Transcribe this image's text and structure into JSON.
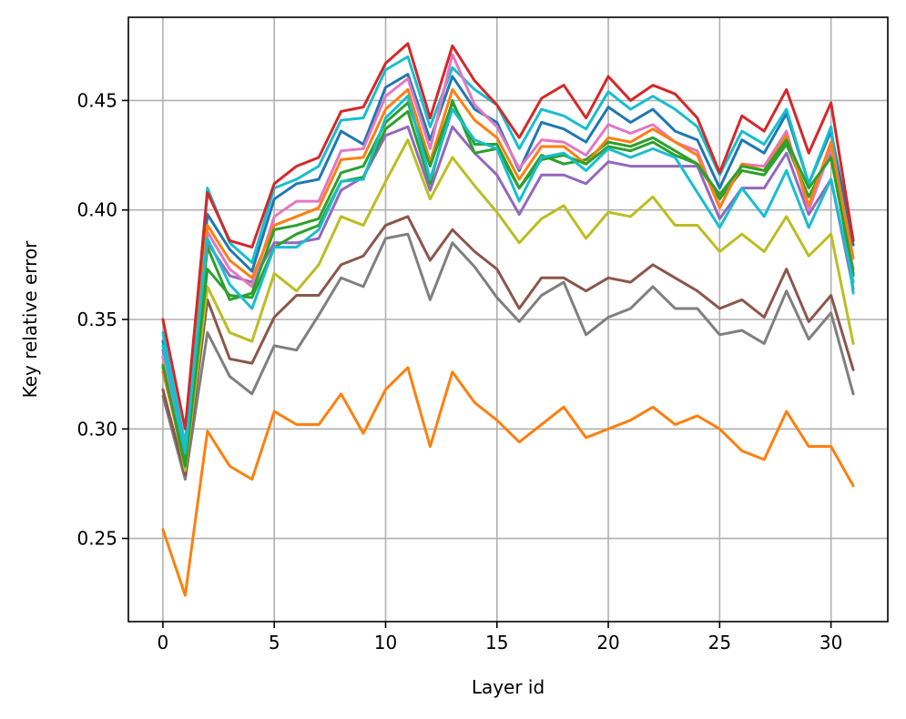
{
  "chart_data": {
    "type": "line",
    "title": "",
    "xlabel": "Layer id",
    "ylabel": "Key relative error",
    "xlim": [
      -1.55,
      32.55
    ],
    "ylim": [
      0.212,
      0.488
    ],
    "xticks": [
      0,
      5,
      10,
      15,
      20,
      25,
      30
    ],
    "xtick_labels": [
      "0",
      "5",
      "10",
      "15",
      "20",
      "25",
      "30"
    ],
    "yticks": [
      0.25,
      0.3,
      0.35,
      0.4,
      0.45
    ],
    "ytick_labels": [
      "0.25",
      "0.30",
      "0.35",
      "0.40",
      "0.45"
    ],
    "grid": true,
    "x": [
      0,
      1,
      2,
      3,
      4,
      5,
      6,
      7,
      8,
      9,
      10,
      11,
      12,
      13,
      14,
      15,
      16,
      17,
      18,
      19,
      20,
      21,
      22,
      23,
      24,
      25,
      26,
      27,
      28,
      29,
      30,
      31
    ],
    "series": [
      {
        "color": "#ff7f0e",
        "values": [
          0.254,
          0.224,
          0.299,
          0.283,
          0.277,
          0.308,
          0.302,
          0.302,
          0.316,
          0.298,
          0.318,
          0.328,
          0.292,
          0.326,
          0.312,
          0.304,
          0.294,
          0.302,
          0.31,
          0.296,
          0.3,
          0.304,
          0.31,
          0.302,
          0.306,
          0.3,
          0.29,
          0.286,
          0.308,
          0.292,
          0.292,
          0.274
        ]
      },
      {
        "color": "#7f7f7f",
        "values": [
          0.315,
          0.277,
          0.344,
          0.324,
          0.316,
          0.338,
          0.336,
          0.352,
          0.369,
          0.365,
          0.387,
          0.389,
          0.359,
          0.385,
          0.374,
          0.36,
          0.349,
          0.361,
          0.367,
          0.343,
          0.351,
          0.355,
          0.365,
          0.355,
          0.355,
          0.343,
          0.345,
          0.339,
          0.363,
          0.341,
          0.353,
          0.316
        ]
      },
      {
        "color": "#8c564b",
        "values": [
          0.318,
          0.279,
          0.359,
          0.332,
          0.33,
          0.351,
          0.361,
          0.361,
          0.375,
          0.379,
          0.393,
          0.397,
          0.377,
          0.391,
          0.381,
          0.373,
          0.355,
          0.369,
          0.369,
          0.363,
          0.369,
          0.367,
          0.375,
          0.369,
          0.363,
          0.355,
          0.359,
          0.351,
          0.373,
          0.349,
          0.361,
          0.327
        ]
      },
      {
        "color": "#bcbd22",
        "values": [
          0.33,
          0.281,
          0.365,
          0.344,
          0.34,
          0.371,
          0.363,
          0.375,
          0.397,
          0.393,
          0.413,
          0.432,
          0.405,
          0.424,
          0.411,
          0.399,
          0.385,
          0.396,
          0.402,
          0.387,
          0.399,
          0.397,
          0.406,
          0.393,
          0.393,
          0.381,
          0.389,
          0.381,
          0.397,
          0.379,
          0.389,
          0.339
        ]
      },
      {
        "color": "#9467bd",
        "values": [
          0.336,
          0.286,
          0.385,
          0.37,
          0.367,
          0.385,
          0.385,
          0.387,
          0.409,
          0.415,
          0.434,
          0.438,
          0.409,
          0.438,
          0.426,
          0.416,
          0.398,
          0.416,
          0.416,
          0.412,
          0.422,
          0.42,
          0.42,
          0.42,
          0.42,
          0.396,
          0.41,
          0.41,
          0.426,
          0.398,
          0.414,
          0.364
        ]
      },
      {
        "color": "#2ca02c",
        "values": [
          0.328,
          0.283,
          0.373,
          0.361,
          0.36,
          0.383,
          0.389,
          0.393,
          0.413,
          0.415,
          0.437,
          0.445,
          0.412,
          0.45,
          0.426,
          0.428,
          0.41,
          0.425,
          0.421,
          0.423,
          0.431,
          0.429,
          0.433,
          0.427,
          0.421,
          0.405,
          0.418,
          0.416,
          0.43,
          0.406,
          0.426,
          0.37
        ]
      },
      {
        "color": "#1f77b4",
        "values": [
          0.34,
          0.29,
          0.398,
          0.382,
          0.372,
          0.405,
          0.412,
          0.414,
          0.436,
          0.43,
          0.456,
          0.462,
          0.432,
          0.461,
          0.446,
          0.44,
          0.418,
          0.44,
          0.437,
          0.431,
          0.447,
          0.44,
          0.446,
          0.436,
          0.432,
          0.41,
          0.432,
          0.426,
          0.444,
          0.412,
          0.436,
          0.384
        ]
      },
      {
        "color": "#17becf",
        "values": [
          0.344,
          0.293,
          0.41,
          0.385,
          0.376,
          0.41,
          0.414,
          0.42,
          0.441,
          0.442,
          0.464,
          0.47,
          0.438,
          0.465,
          0.455,
          0.448,
          0.428,
          0.446,
          0.443,
          0.437,
          0.454,
          0.446,
          0.452,
          0.446,
          0.438,
          0.416,
          0.436,
          0.43,
          0.446,
          0.412,
          0.438,
          0.362
        ]
      },
      {
        "color": "#e377c2",
        "values": [
          0.333,
          0.287,
          0.39,
          0.373,
          0.365,
          0.397,
          0.404,
          0.404,
          0.427,
          0.428,
          0.452,
          0.46,
          0.428,
          0.471,
          0.448,
          0.438,
          0.419,
          0.432,
          0.431,
          0.425,
          0.439,
          0.435,
          0.439,
          0.431,
          0.427,
          0.401,
          0.421,
          0.42,
          0.436,
          0.4,
          0.428,
          0.373
        ]
      },
      {
        "color": "#d62728",
        "values": [
          0.35,
          0.3,
          0.408,
          0.386,
          0.383,
          0.412,
          0.42,
          0.424,
          0.445,
          0.447,
          0.467,
          0.476,
          0.442,
          0.475,
          0.459,
          0.448,
          0.433,
          0.451,
          0.457,
          0.442,
          0.461,
          0.45,
          0.457,
          0.453,
          0.442,
          0.417,
          0.443,
          0.436,
          0.455,
          0.426,
          0.449,
          0.386
        ]
      },
      {
        "color": "#ff7f0e",
        "values": [
          0.326,
          0.285,
          0.393,
          0.377,
          0.369,
          0.393,
          0.397,
          0.401,
          0.423,
          0.424,
          0.446,
          0.455,
          0.422,
          0.455,
          0.441,
          0.433,
          0.414,
          0.429,
          0.429,
          0.421,
          0.433,
          0.431,
          0.437,
          0.431,
          0.425,
          0.401,
          0.421,
          0.418,
          0.434,
          0.402,
          0.431,
          0.378
        ]
      },
      {
        "color": "#2ca02c",
        "values": [
          0.329,
          0.284,
          0.383,
          0.359,
          0.362,
          0.391,
          0.393,
          0.396,
          0.417,
          0.42,
          0.44,
          0.449,
          0.42,
          0.449,
          0.43,
          0.43,
          0.41,
          0.423,
          0.425,
          0.421,
          0.429,
          0.427,
          0.431,
          0.425,
          0.421,
          0.407,
          0.42,
          0.418,
          0.432,
          0.41,
          0.424,
          0.371
        ]
      },
      {
        "color": "#17becf",
        "values": [
          0.338,
          0.289,
          0.387,
          0.366,
          0.355,
          0.383,
          0.383,
          0.391,
          0.413,
          0.414,
          0.442,
          0.452,
          0.414,
          0.446,
          0.432,
          0.428,
          0.404,
          0.424,
          0.426,
          0.418,
          0.428,
          0.424,
          0.428,
          0.424,
          0.408,
          0.392,
          0.41,
          0.397,
          0.418,
          0.392,
          0.414,
          0.367
        ]
      }
    ]
  }
}
